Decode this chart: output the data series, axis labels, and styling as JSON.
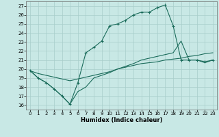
{
  "xlabel": "Humidex (Indice chaleur)",
  "background_color": "#c8e8e5",
  "grid_color": "#a8ceca",
  "line_color": "#1a6b5a",
  "xlim": [
    -0.5,
    23.5
  ],
  "ylim": [
    15.5,
    27.5
  ],
  "xticks": [
    0,
    1,
    2,
    3,
    4,
    5,
    6,
    7,
    8,
    9,
    10,
    11,
    12,
    13,
    14,
    15,
    16,
    17,
    18,
    19,
    20,
    21,
    22,
    23
  ],
  "yticks": [
    16,
    17,
    18,
    19,
    20,
    21,
    22,
    23,
    24,
    25,
    26,
    27
  ],
  "line_peak_x": [
    0,
    1,
    2,
    3,
    4,
    5,
    6,
    7,
    8,
    9,
    10,
    11,
    12,
    13,
    14,
    15,
    16,
    17,
    18,
    19,
    20,
    21,
    22,
    23
  ],
  "line_peak_y": [
    19.8,
    19.0,
    18.5,
    17.8,
    17.0,
    16.1,
    18.5,
    21.8,
    22.4,
    23.1,
    24.8,
    25.0,
    25.4,
    26.0,
    26.3,
    26.3,
    26.8,
    27.1,
    24.8,
    21.0,
    21.0,
    21.0,
    20.8,
    21.0
  ],
  "line_straight_x": [
    0,
    1,
    2,
    3,
    4,
    5,
    6,
    7,
    8,
    9,
    10,
    11,
    12,
    13,
    14,
    15,
    16,
    17,
    18,
    19,
    20,
    21,
    22,
    23
  ],
  "line_straight_y": [
    19.8,
    19.5,
    19.3,
    19.1,
    18.9,
    18.7,
    18.9,
    19.1,
    19.3,
    19.5,
    19.7,
    20.0,
    20.2,
    20.4,
    20.6,
    20.7,
    20.8,
    21.0,
    21.1,
    21.2,
    21.4,
    21.5,
    21.7,
    21.8
  ],
  "line_mid_x": [
    0,
    1,
    2,
    3,
    4,
    5,
    6,
    7,
    8,
    9,
    10,
    11,
    12,
    13,
    14,
    15,
    16,
    17,
    18,
    19,
    20,
    21,
    22,
    23
  ],
  "line_mid_y": [
    19.8,
    19.0,
    18.5,
    17.8,
    17.0,
    16.1,
    17.5,
    18.0,
    19.0,
    19.3,
    19.6,
    20.0,
    20.3,
    20.6,
    21.0,
    21.2,
    21.4,
    21.6,
    21.8,
    23.1,
    21.0,
    21.0,
    20.7,
    21.0
  ]
}
